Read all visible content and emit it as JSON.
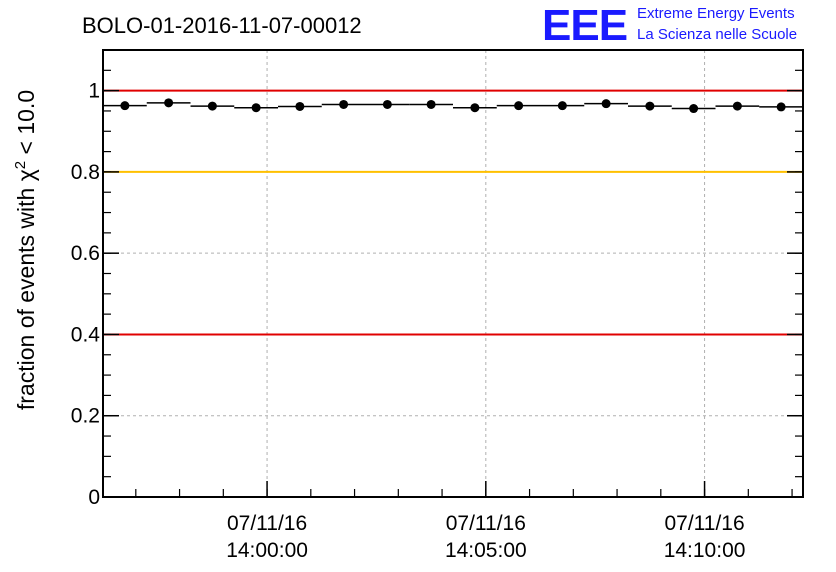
{
  "header": {
    "title": "BOLO-01-2016-11-07-00012",
    "logo_mark": "EEE",
    "logo_line1": "Extreme Energy Events",
    "logo_line2": "La Scienza nelle Scuole"
  },
  "chart_data": {
    "type": "scatter",
    "title": "BOLO-01-2016-11-07-00012",
    "ylabel_prefix": "fraction of events with",
    "ylabel_chi": "χ",
    "ylabel_exp": "2",
    "ylabel_suffix": "< 10.0",
    "xlabel": "",
    "ylim": [
      0,
      1.1
    ],
    "xlim": [
      "13:56:15",
      "14:12:15"
    ],
    "x_unit": "time",
    "yticks": [
      "0",
      "0.2",
      "0.4",
      "0.6",
      "0.8",
      "1"
    ],
    "xticks": [
      {
        "time": "14:00:00",
        "date": "07/11/16",
        "label": "14:00:00"
      },
      {
        "time": "14:05:00",
        "date": "07/11/16",
        "label": "14:05:00"
      },
      {
        "time": "14:10:00",
        "date": "07/11/16",
        "label": "14:10:00"
      }
    ],
    "grid": true,
    "reference_lines": [
      {
        "y": 1.0,
        "color": "#e00000"
      },
      {
        "y": 0.8,
        "color": "#ffc000"
      },
      {
        "y": 0.4,
        "color": "#e00000"
      }
    ],
    "series": [
      {
        "x": [
          "13:56:45",
          "13:57:45",
          "13:58:45",
          "13:59:45",
          "14:00:45",
          "14:01:45",
          "14:02:45",
          "14:03:45",
          "14:04:45",
          "14:05:45",
          "14:06:45",
          "14:07:45",
          "14:08:45",
          "14:09:45",
          "14:10:45",
          "14:11:45"
        ],
        "values": [
          0.963,
          0.97,
          0.962,
          0.958,
          0.961,
          0.966,
          0.966,
          0.966,
          0.958,
          0.963,
          0.963,
          0.968,
          0.962,
          0.956,
          0.962,
          0.96
        ],
        "x_halfwidth_seconds": 30,
        "color": "#000000"
      }
    ]
  }
}
